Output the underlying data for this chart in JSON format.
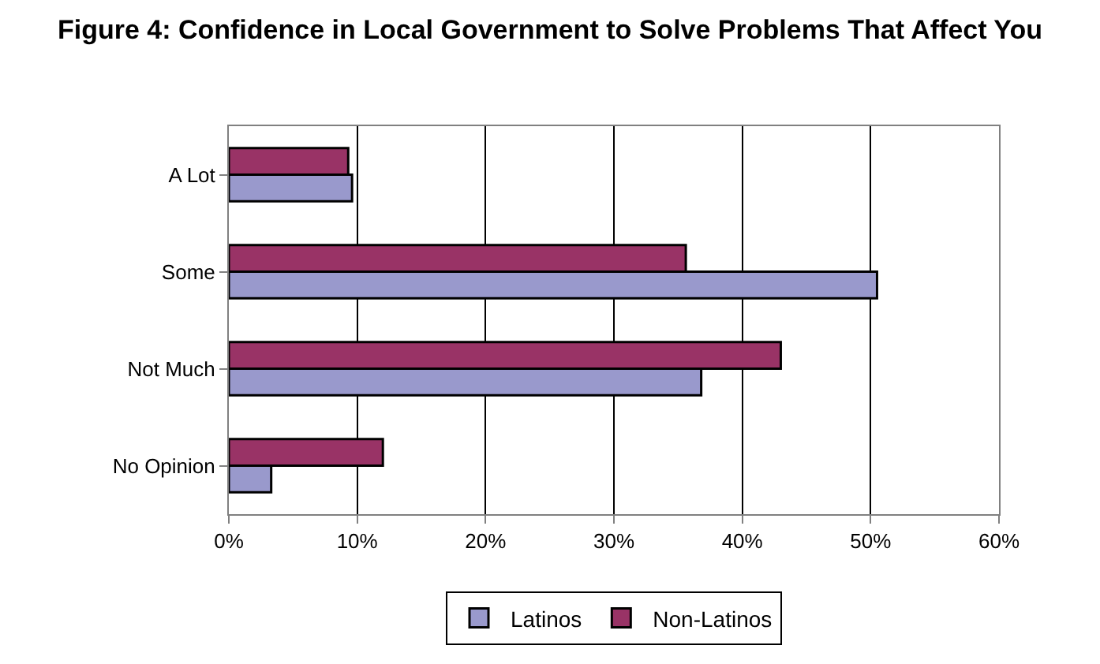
{
  "chart_data": {
    "type": "bar",
    "orientation": "horizontal",
    "title": "Figure 4: Confidence in Local Government to Solve Problems That Affect You",
    "categories": [
      "A Lot",
      "Some",
      "Not Much",
      "No Opinion"
    ],
    "series": [
      {
        "name": "Latinos",
        "color": "#9999cc",
        "values": [
          9.6,
          50.5,
          36.8,
          3.3
        ]
      },
      {
        "name": "Non-Latinos",
        "color": "#993366",
        "values": [
          9.3,
          35.6,
          43.0,
          12.0
        ]
      }
    ],
    "xlim": [
      0,
      60
    ],
    "xticks": [
      {
        "value": 0,
        "label": "0%"
      },
      {
        "value": 10,
        "label": "10%"
      },
      {
        "value": 20,
        "label": "20%"
      },
      {
        "value": 30,
        "label": "30%"
      },
      {
        "value": 40,
        "label": "40%"
      },
      {
        "value": 50,
        "label": "50%"
      },
      {
        "value": 60,
        "label": "60%"
      }
    ],
    "grid": "x",
    "legend": "bottom"
  }
}
